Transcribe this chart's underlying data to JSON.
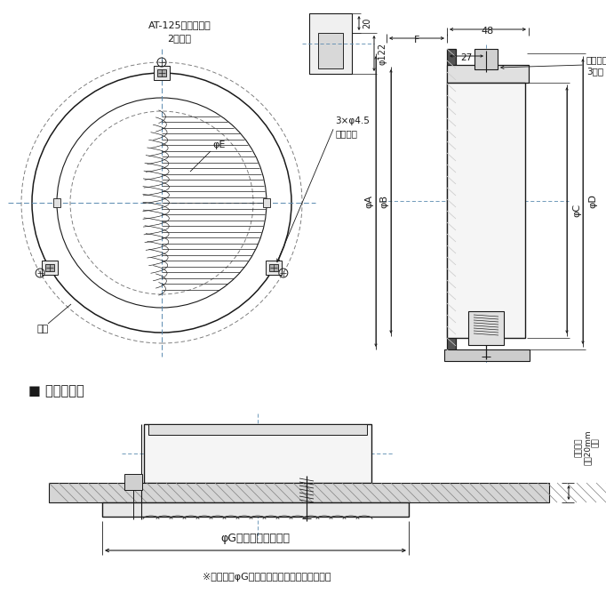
{
  "bg": "#ffffff",
  "lc": "#1a1a1a",
  "title1": "AT-125タイプのみ",
  "title2": "2管路用",
  "lbl_phi45a": "3×φ4.5",
  "lbl_phi45b": "据付用穴",
  "lbl_phiE": "φE",
  "lbl_neji": "ネジ",
  "lbl_F": "F",
  "lbl_48": "48",
  "lbl_27": "27",
  "lbl_kotei1": "固定金具",
  "lbl_kotei2": "3か所",
  "lbl_phiA": "φA",
  "lbl_phiB": "φB",
  "lbl_phiC": "φC",
  "lbl_phiD": "φD",
  "lbl_20": "20",
  "lbl_phi122": "φ122",
  "lbl_section": "■ 据付詳細図",
  "lbl_phiG": "φG（天井据付用穴）",
  "lbl_note": "※据付にはφG寸法を必ず確保してください。",
  "lbl_r1": "据付可能",
  "lbl_r2": "板厔20mm",
  "lbl_r3": "以下"
}
